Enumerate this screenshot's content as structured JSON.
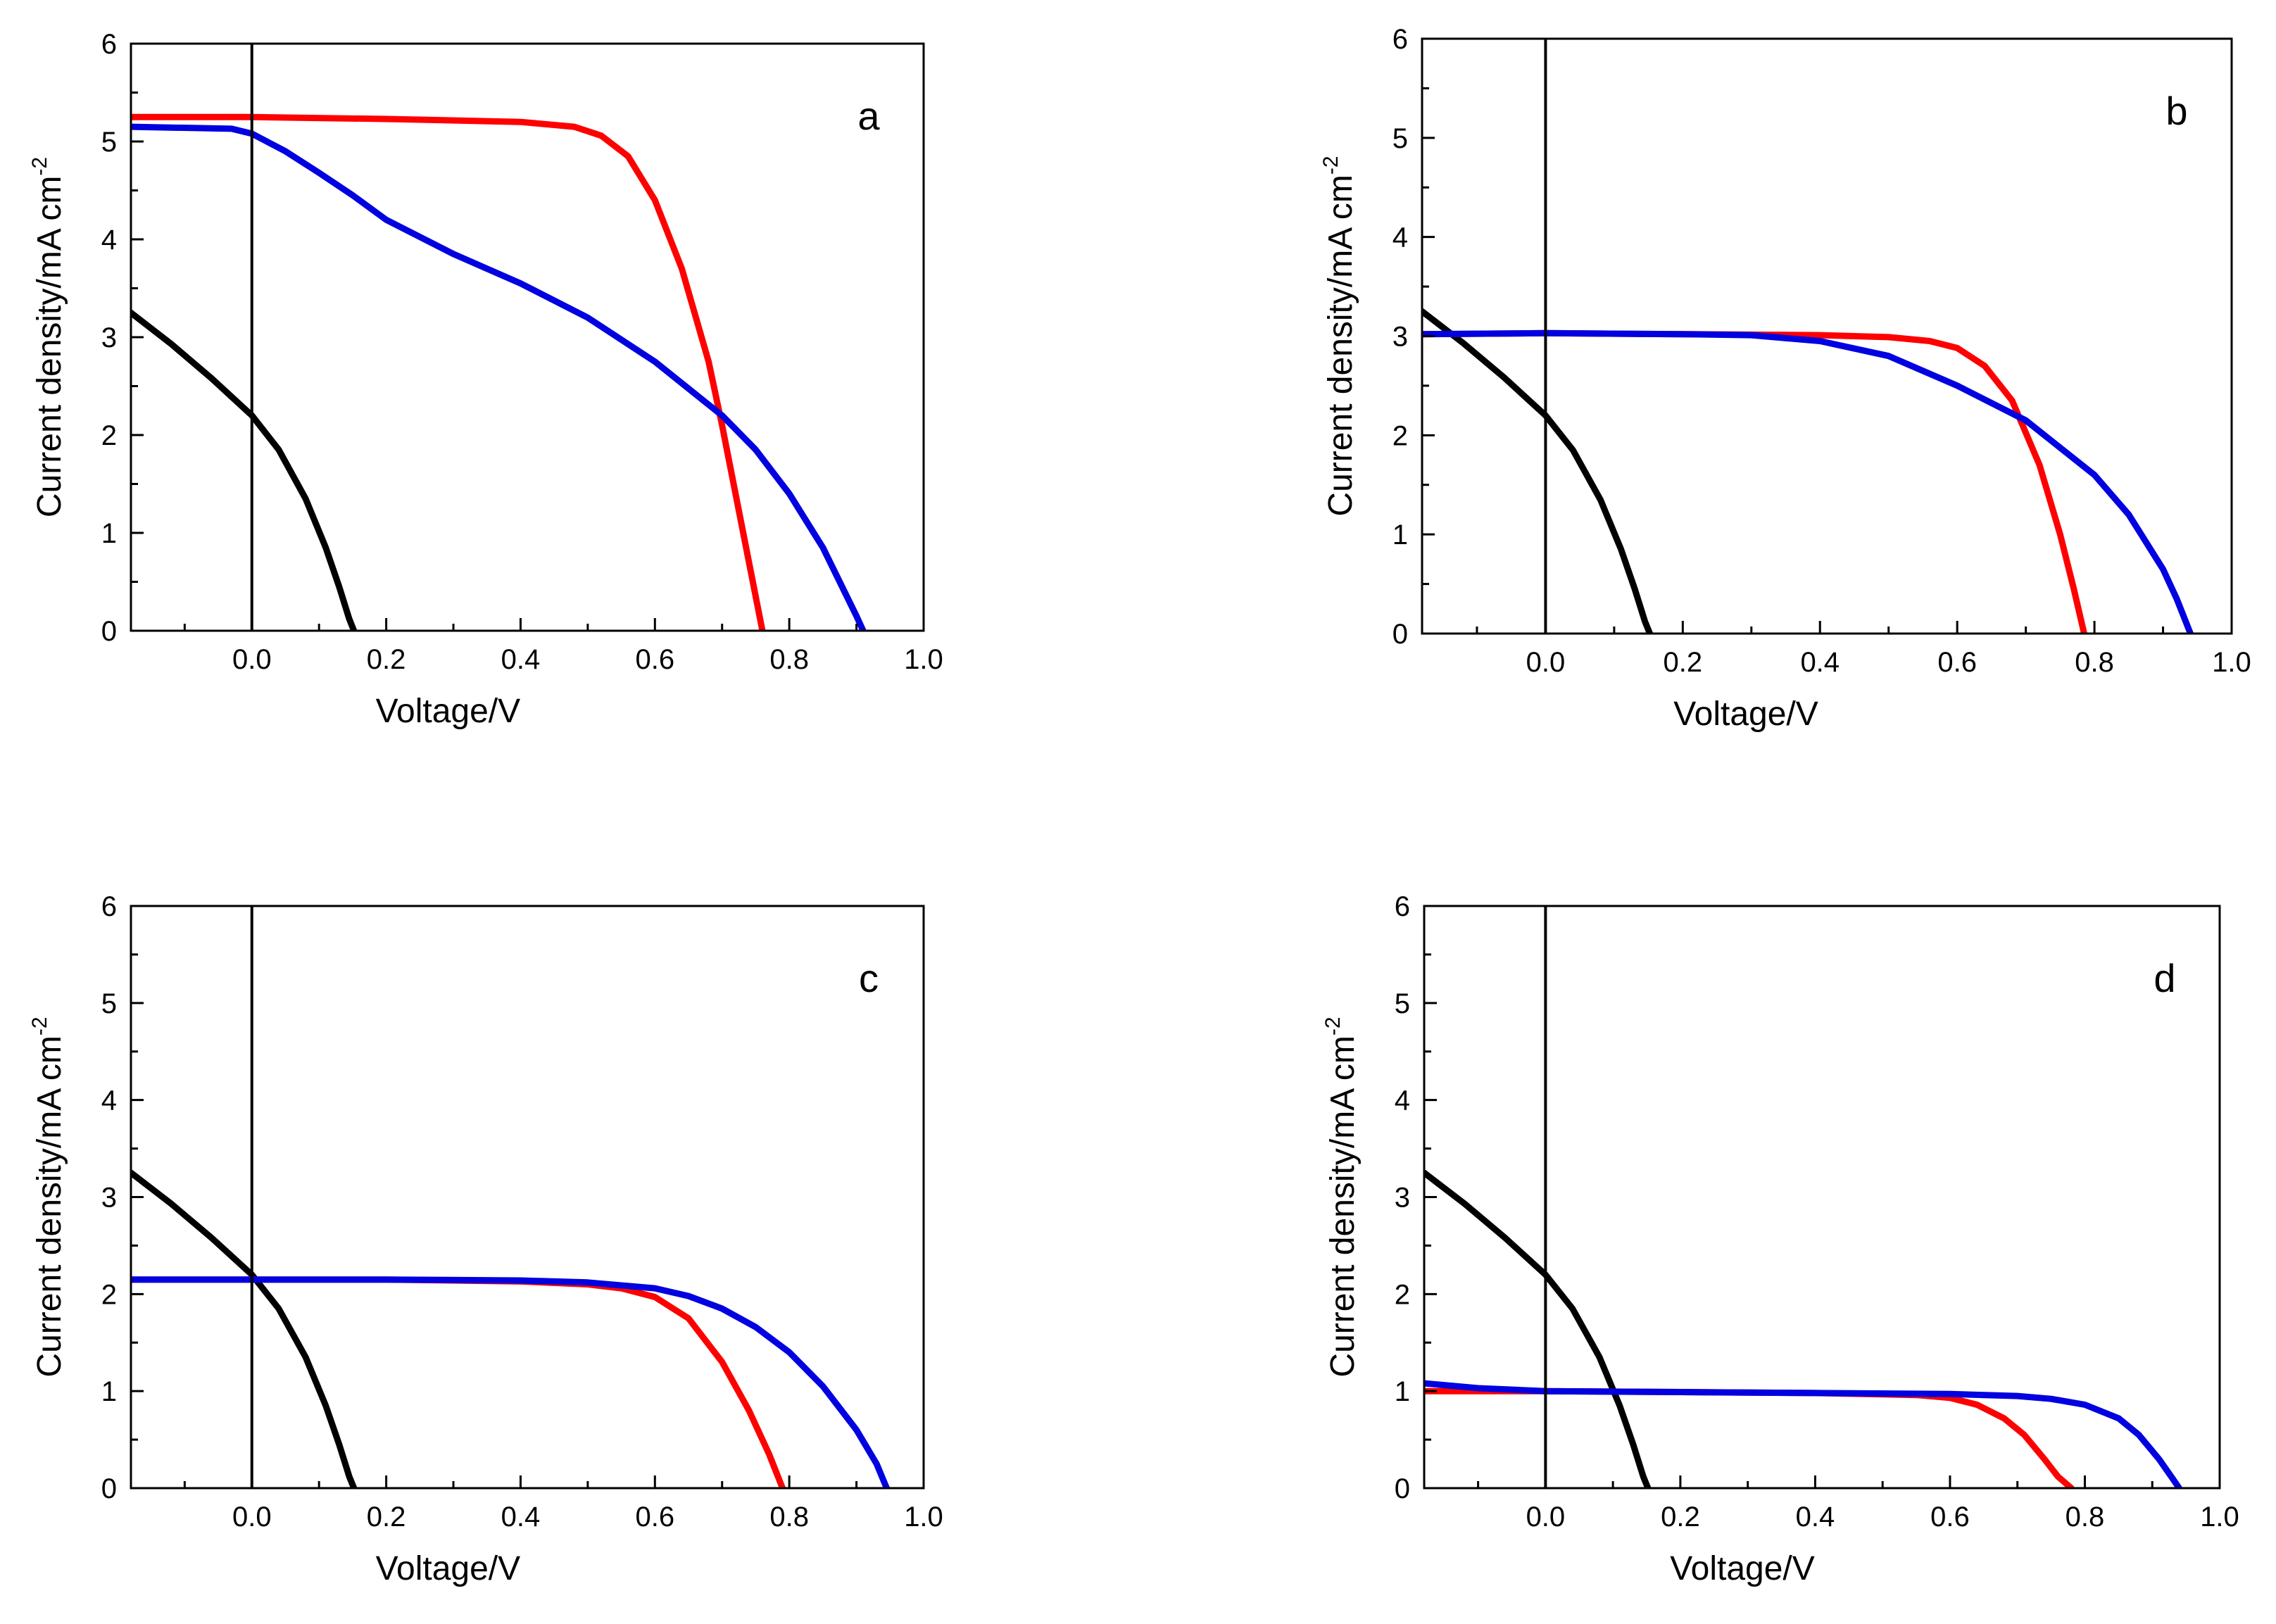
{
  "colors": {
    "black": "#000000",
    "red": "#ff0000",
    "blue": "#0000e0"
  },
  "chart_data": [
    {
      "type": "line",
      "panel_label": "a",
      "xlabel": "Voltage/V",
      "ylabel": "Current density/mA cm",
      "ylabel_exponent": "-2",
      "xlim": [
        -0.18,
        1.0
      ],
      "ylim": [
        0,
        6
      ],
      "xticks": [
        "0.0",
        "0.2",
        "0.4",
        "0.6",
        "0.8",
        "1.0"
      ],
      "yticks": [
        "0",
        "1",
        "2",
        "3",
        "4",
        "5",
        "6"
      ],
      "series": [
        {
          "name": "black",
          "color": "#000000",
          "x": [
            -0.18,
            -0.12,
            -0.06,
            0.0,
            0.04,
            0.08,
            0.11,
            0.13,
            0.145,
            0.152
          ],
          "y": [
            3.25,
            2.93,
            2.58,
            2.2,
            1.85,
            1.35,
            0.85,
            0.45,
            0.12,
            0.0
          ]
        },
        {
          "name": "red",
          "color": "#ff0000",
          "x": [
            -0.18,
            0.0,
            0.2,
            0.4,
            0.48,
            0.52,
            0.56,
            0.6,
            0.64,
            0.68,
            0.7,
            0.72,
            0.74,
            0.76
          ],
          "y": [
            5.25,
            5.25,
            5.23,
            5.2,
            5.15,
            5.06,
            4.85,
            4.4,
            3.7,
            2.75,
            2.1,
            1.4,
            0.7,
            0.0
          ]
        },
        {
          "name": "blue",
          "color": "#0000e0",
          "x": [
            -0.18,
            -0.03,
            0.0,
            0.05,
            0.1,
            0.15,
            0.2,
            0.3,
            0.4,
            0.5,
            0.6,
            0.7,
            0.75,
            0.8,
            0.85,
            0.9,
            0.91
          ],
          "y": [
            5.15,
            5.13,
            5.08,
            4.9,
            4.68,
            4.45,
            4.2,
            3.85,
            3.55,
            3.2,
            2.75,
            2.2,
            1.85,
            1.4,
            0.85,
            0.15,
            0.0
          ]
        }
      ]
    },
    {
      "type": "line",
      "panel_label": "b",
      "xlabel": "Voltage/V",
      "ylabel": "Current density/mA cm",
      "ylabel_exponent": "-2",
      "xlim": [
        -0.18,
        1.0
      ],
      "ylim": [
        0,
        6
      ],
      "xticks": [
        "0.0",
        "0.2",
        "0.4",
        "0.6",
        "0.8",
        "1.0"
      ],
      "yticks": [
        "0",
        "1",
        "2",
        "3",
        "4",
        "5",
        "6"
      ],
      "series": [
        {
          "name": "black",
          "color": "#000000",
          "x": [
            -0.18,
            -0.12,
            -0.06,
            0.0,
            0.04,
            0.08,
            0.11,
            0.13,
            0.145,
            0.152
          ],
          "y": [
            3.25,
            2.93,
            2.58,
            2.2,
            1.85,
            1.35,
            0.85,
            0.45,
            0.12,
            0.0
          ]
        },
        {
          "name": "red",
          "color": "#ff0000",
          "x": [
            -0.18,
            0.0,
            0.2,
            0.4,
            0.5,
            0.56,
            0.6,
            0.64,
            0.68,
            0.72,
            0.75,
            0.77,
            0.785
          ],
          "y": [
            3.02,
            3.03,
            3.02,
            3.01,
            2.99,
            2.95,
            2.88,
            2.7,
            2.35,
            1.7,
            1.0,
            0.45,
            0.0
          ]
        },
        {
          "name": "blue",
          "color": "#0000e0",
          "x": [
            -0.18,
            0.0,
            0.2,
            0.3,
            0.4,
            0.5,
            0.6,
            0.7,
            0.8,
            0.85,
            0.9,
            0.92,
            0.94
          ],
          "y": [
            3.02,
            3.03,
            3.02,
            3.01,
            2.95,
            2.8,
            2.5,
            2.15,
            1.6,
            1.2,
            0.65,
            0.35,
            0.0
          ]
        }
      ]
    },
    {
      "type": "line",
      "panel_label": "c",
      "xlabel": "Voltage/V",
      "ylabel": "Current density/mA cm",
      "ylabel_exponent": "-2",
      "xlim": [
        -0.18,
        1.0
      ],
      "ylim": [
        0,
        6
      ],
      "xticks": [
        "0.0",
        "0.2",
        "0.4",
        "0.6",
        "0.8",
        "1.0"
      ],
      "yticks": [
        "0",
        "1",
        "2",
        "3",
        "4",
        "5",
        "6"
      ],
      "series": [
        {
          "name": "black",
          "color": "#000000",
          "x": [
            -0.18,
            -0.12,
            -0.06,
            0.0,
            0.04,
            0.08,
            0.11,
            0.13,
            0.145,
            0.152
          ],
          "y": [
            3.25,
            2.93,
            2.58,
            2.2,
            1.85,
            1.35,
            0.85,
            0.45,
            0.12,
            0.0
          ]
        },
        {
          "name": "red",
          "color": "#ff0000",
          "x": [
            -0.18,
            0.0,
            0.2,
            0.4,
            0.5,
            0.55,
            0.6,
            0.65,
            0.7,
            0.74,
            0.77,
            0.79
          ],
          "y": [
            2.15,
            2.15,
            2.15,
            2.13,
            2.1,
            2.06,
            1.97,
            1.75,
            1.3,
            0.8,
            0.35,
            0.0
          ]
        },
        {
          "name": "blue",
          "color": "#0000e0",
          "x": [
            -0.18,
            0.0,
            0.2,
            0.4,
            0.5,
            0.6,
            0.65,
            0.7,
            0.75,
            0.8,
            0.85,
            0.9,
            0.93,
            0.945
          ],
          "y": [
            2.15,
            2.15,
            2.15,
            2.14,
            2.12,
            2.06,
            1.98,
            1.85,
            1.66,
            1.4,
            1.05,
            0.6,
            0.25,
            0.0
          ]
        }
      ]
    },
    {
      "type": "line",
      "panel_label": "d",
      "xlabel": "Voltage/V",
      "ylabel": "Current density/mA cm",
      "ylabel_exponent": "-2",
      "xlim": [
        -0.18,
        1.0
      ],
      "ylim": [
        0,
        6
      ],
      "xticks": [
        "0.0",
        "0.2",
        "0.4",
        "0.6",
        "0.8",
        "1.0"
      ],
      "yticks": [
        "0",
        "1",
        "2",
        "3",
        "4",
        "5",
        "6"
      ],
      "series": [
        {
          "name": "black",
          "color": "#000000",
          "x": [
            -0.18,
            -0.12,
            -0.06,
            0.0,
            0.04,
            0.08,
            0.11,
            0.13,
            0.145,
            0.152
          ],
          "y": [
            3.25,
            2.93,
            2.58,
            2.2,
            1.85,
            1.35,
            0.85,
            0.45,
            0.12,
            0.0
          ]
        },
        {
          "name": "red",
          "color": "#ff0000",
          "x": [
            -0.18,
            0.0,
            0.2,
            0.4,
            0.55,
            0.6,
            0.64,
            0.68,
            0.71,
            0.74,
            0.76,
            0.78
          ],
          "y": [
            1.0,
            1.0,
            0.99,
            0.98,
            0.96,
            0.93,
            0.86,
            0.72,
            0.55,
            0.3,
            0.12,
            0.0
          ]
        },
        {
          "name": "blue",
          "color": "#0000e0",
          "x": [
            -0.18,
            -0.1,
            0.0,
            0.2,
            0.4,
            0.6,
            0.7,
            0.75,
            0.8,
            0.85,
            0.88,
            0.91,
            0.93,
            0.94
          ],
          "y": [
            1.08,
            1.03,
            1.0,
            0.99,
            0.98,
            0.97,
            0.95,
            0.92,
            0.86,
            0.72,
            0.55,
            0.3,
            0.1,
            0.0
          ]
        }
      ]
    }
  ]
}
